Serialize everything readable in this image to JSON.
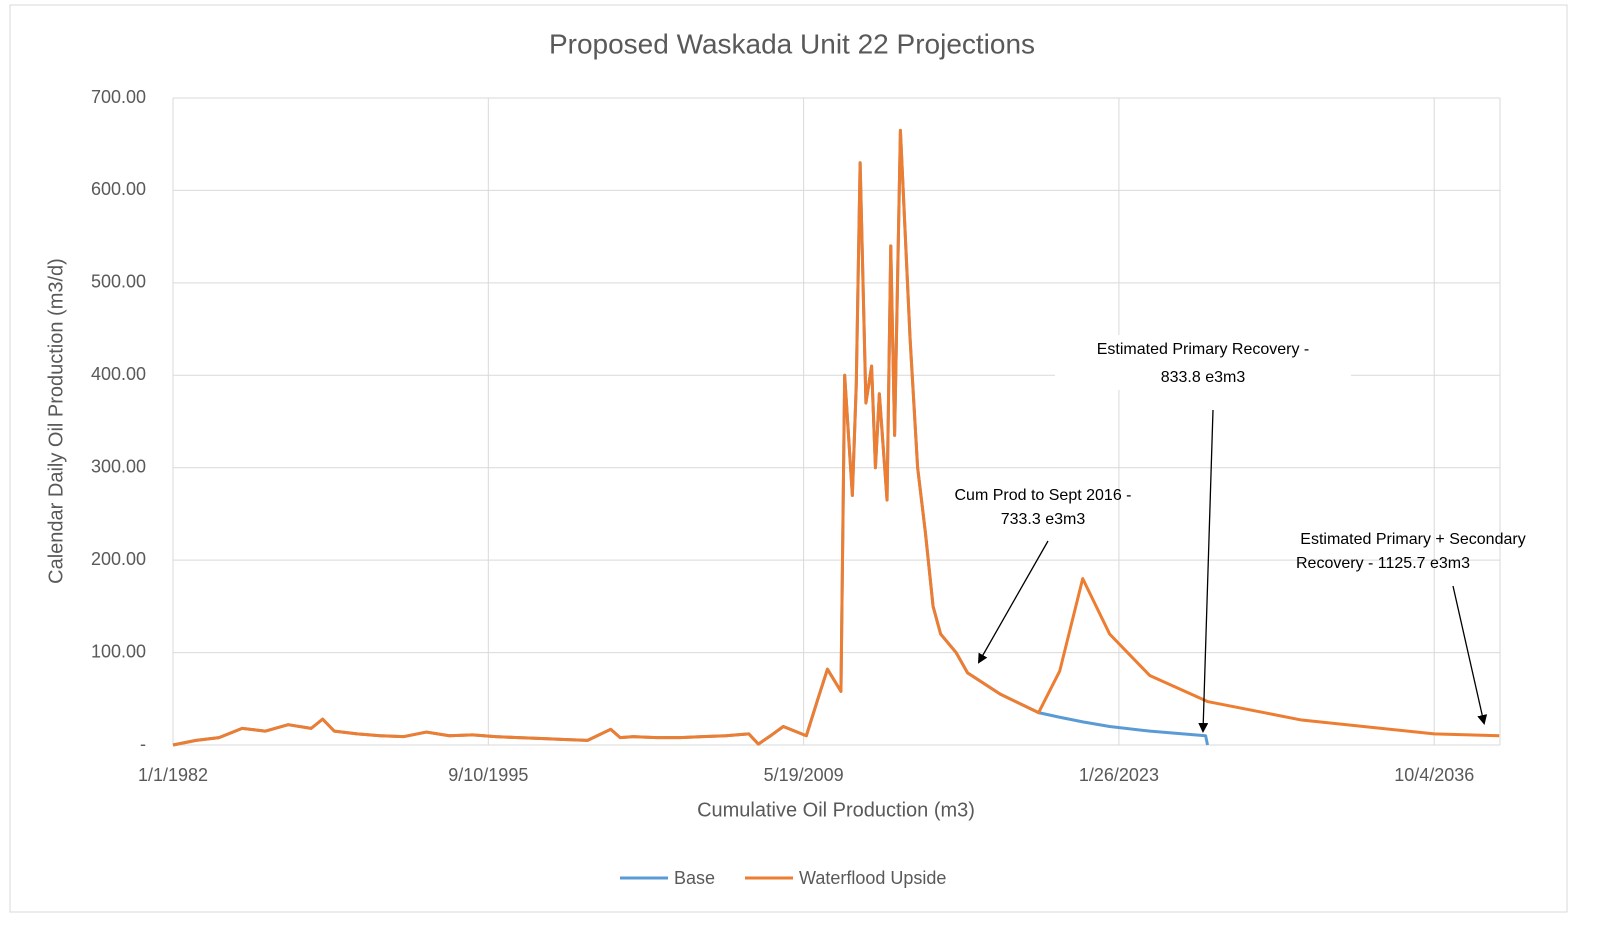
{
  "chart_data": {
    "type": "line",
    "title": "Proposed Waskada Unit 22 Projections",
    "x_label": "Cumulative Oil Production (m3)",
    "y_label": "Calendar Daily Oil Production (m3/d)",
    "x": [
      "1982-01-01",
      "1983-01-01",
      "1984-01-01",
      "1985-01-01",
      "1986-01-01",
      "1987-01-01",
      "1988-01-01",
      "1988-07-01",
      "1989-01-01",
      "1990-01-01",
      "1991-01-01",
      "1992-01-01",
      "1993-01-01",
      "1994-01-01",
      "1995-01-01",
      "1996-01-01",
      "1997-01-01",
      "1998-01-01",
      "1999-01-01",
      "2000-01-01",
      "2001-01-01",
      "2001-06-01",
      "2002-01-01",
      "2003-01-01",
      "2004-01-01",
      "2005-01-01",
      "2006-01-01",
      "2007-01-01",
      "2007-06-01",
      "2008-01-01",
      "2008-07-01",
      "2009-07-01",
      "2010-01-01",
      "2010-06-01",
      "2011-01-01",
      "2011-03-01",
      "2011-07-01",
      "2011-09-01",
      "2011-11-01",
      "2012-02-01",
      "2012-05-01",
      "2012-07-01",
      "2012-09-01",
      "2013-01-01",
      "2013-03-01",
      "2013-05-01",
      "2013-08-01",
      "2014-01-01",
      "2014-05-01",
      "2014-09-01",
      "2015-01-01",
      "2015-05-01",
      "2016-01-01",
      "2016-07-01",
      "2017-12-01",
      "2019-08-01",
      "2020-07-01",
      "2021-07-01",
      "2022-09-01",
      "2024-06-01",
      "2026-11-01",
      "2026-12-01",
      "2031-01-01",
      "2036-10-01",
      "2039-08-01"
    ],
    "series": [
      {
        "name": "Base",
        "color": "#5b9bd5",
        "values": [
          0,
          5,
          8,
          18,
          15,
          22,
          18,
          28,
          15,
          12,
          10,
          9,
          14,
          10,
          11,
          9,
          8,
          7,
          6,
          5,
          17,
          8,
          9,
          8,
          8,
          9,
          10,
          12,
          1,
          11,
          20,
          10,
          50,
          82,
          58,
          400,
          270,
          390,
          630,
          370,
          410,
          300,
          380,
          265,
          540,
          335,
          665,
          440,
          300,
          230,
          150,
          120,
          100,
          78,
          55,
          35,
          30,
          25,
          20,
          15,
          10,
          0,
          null,
          null,
          null
        ]
      },
      {
        "name": "Waterflood Upside",
        "color": "#ed7d31",
        "values": [
          0,
          5,
          8,
          18,
          15,
          22,
          18,
          28,
          15,
          12,
          10,
          9,
          14,
          10,
          11,
          9,
          8,
          7,
          6,
          5,
          17,
          8,
          9,
          8,
          8,
          9,
          10,
          12,
          1,
          11,
          20,
          10,
          50,
          82,
          58,
          400,
          270,
          390,
          630,
          370,
          410,
          300,
          380,
          265,
          540,
          335,
          665,
          440,
          300,
          230,
          150,
          120,
          100,
          78,
          55,
          35,
          80,
          180,
          120,
          75,
          48,
          47,
          27,
          12,
          10
        ]
      }
    ],
    "xlim": [
      "1982-01-01",
      "2039-08-13"
    ],
    "xticks": [
      {
        "value": "1982-01-01",
        "label": "1/1/1982"
      },
      {
        "value": "1995-09-10",
        "label": "9/10/1995"
      },
      {
        "value": "2009-05-19",
        "label": "5/19/2009"
      },
      {
        "value": "2023-01-26",
        "label": "1/26/2023"
      },
      {
        "value": "2036-10-04",
        "label": "10/4/2036"
      }
    ],
    "ylim": [
      0,
      700
    ],
    "yticks": [
      {
        "value": 0,
        "label": "-"
      },
      {
        "value": 100,
        "label": "100.00"
      },
      {
        "value": 200,
        "label": "200.00"
      },
      {
        "value": 300,
        "label": "300.00"
      },
      {
        "value": 400,
        "label": "400.00"
      },
      {
        "value": 500,
        "label": "500.00"
      },
      {
        "value": 600,
        "label": "600.00"
      },
      {
        "value": 700,
        "label": "700.00"
      }
    ],
    "grid": true,
    "legend": "bottom",
    "annotations": [
      {
        "lines": [
          "Cum Prod to Sept 2016 -",
          "733.3 e3m3"
        ]
      },
      {
        "lines": [
          "Estimated Primary Recovery -",
          "833.8 e3m3"
        ]
      },
      {
        "lines": [
          "Estimated Primary + Secondary",
          "Recovery - 1125.7 e3m3"
        ]
      }
    ]
  }
}
